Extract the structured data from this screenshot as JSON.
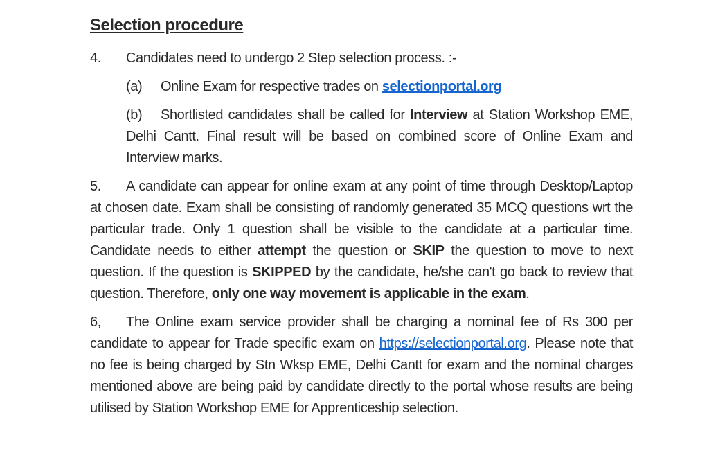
{
  "heading": "Selection procedure",
  "item4": {
    "number": "4.",
    "lead": "Candidates need to undergo 2 Step selection process. :-",
    "a": {
      "label": "(a)",
      "pre": "Online Exam for respective trades on ",
      "link_text": "selectionportal.org"
    },
    "b": {
      "label": "(b)",
      "pre": "Shortlisted candidates shall be called for ",
      "bold1": "Interview",
      "post": " at Station Workshop EME, Delhi Cantt. Final result will be based on combined score of Online Exam and Interview marks."
    }
  },
  "item5": {
    "number": "5.",
    "t1": "A candidate can appear for online exam at any point of time through Desktop/Laptop at chosen date. Exam shall be consisting of randomly generated 35 MCQ questions wrt the particular trade. Only 1 question shall be visible to the candidate at a particular time. Candidate needs to either ",
    "b1": "attempt",
    "t2": " the question or ",
    "b2": "SKIP",
    "t3": " the question to move to next question. If the question is ",
    "b3": "SKIPPED",
    "t4": " by the candidate, he/she can't go back to review that question. Therefore, ",
    "b4": "only one way movement is applicable in the exam",
    "t5": "."
  },
  "item6": {
    "number": "6,",
    "t1": "The Online exam service provider shall be charging a nominal fee of Rs 300 per candidate to appear for Trade specific exam on ",
    "link_text": "https://selectionportal.org",
    "t2": ". Please note that no fee is being charged by Stn Wksp EME, Delhi Cantt for exam and the nominal charges mentioned above are being paid by candidate directly to the portal whose results are being utilised by Station Workshop EME for Apprenticeship selection."
  }
}
